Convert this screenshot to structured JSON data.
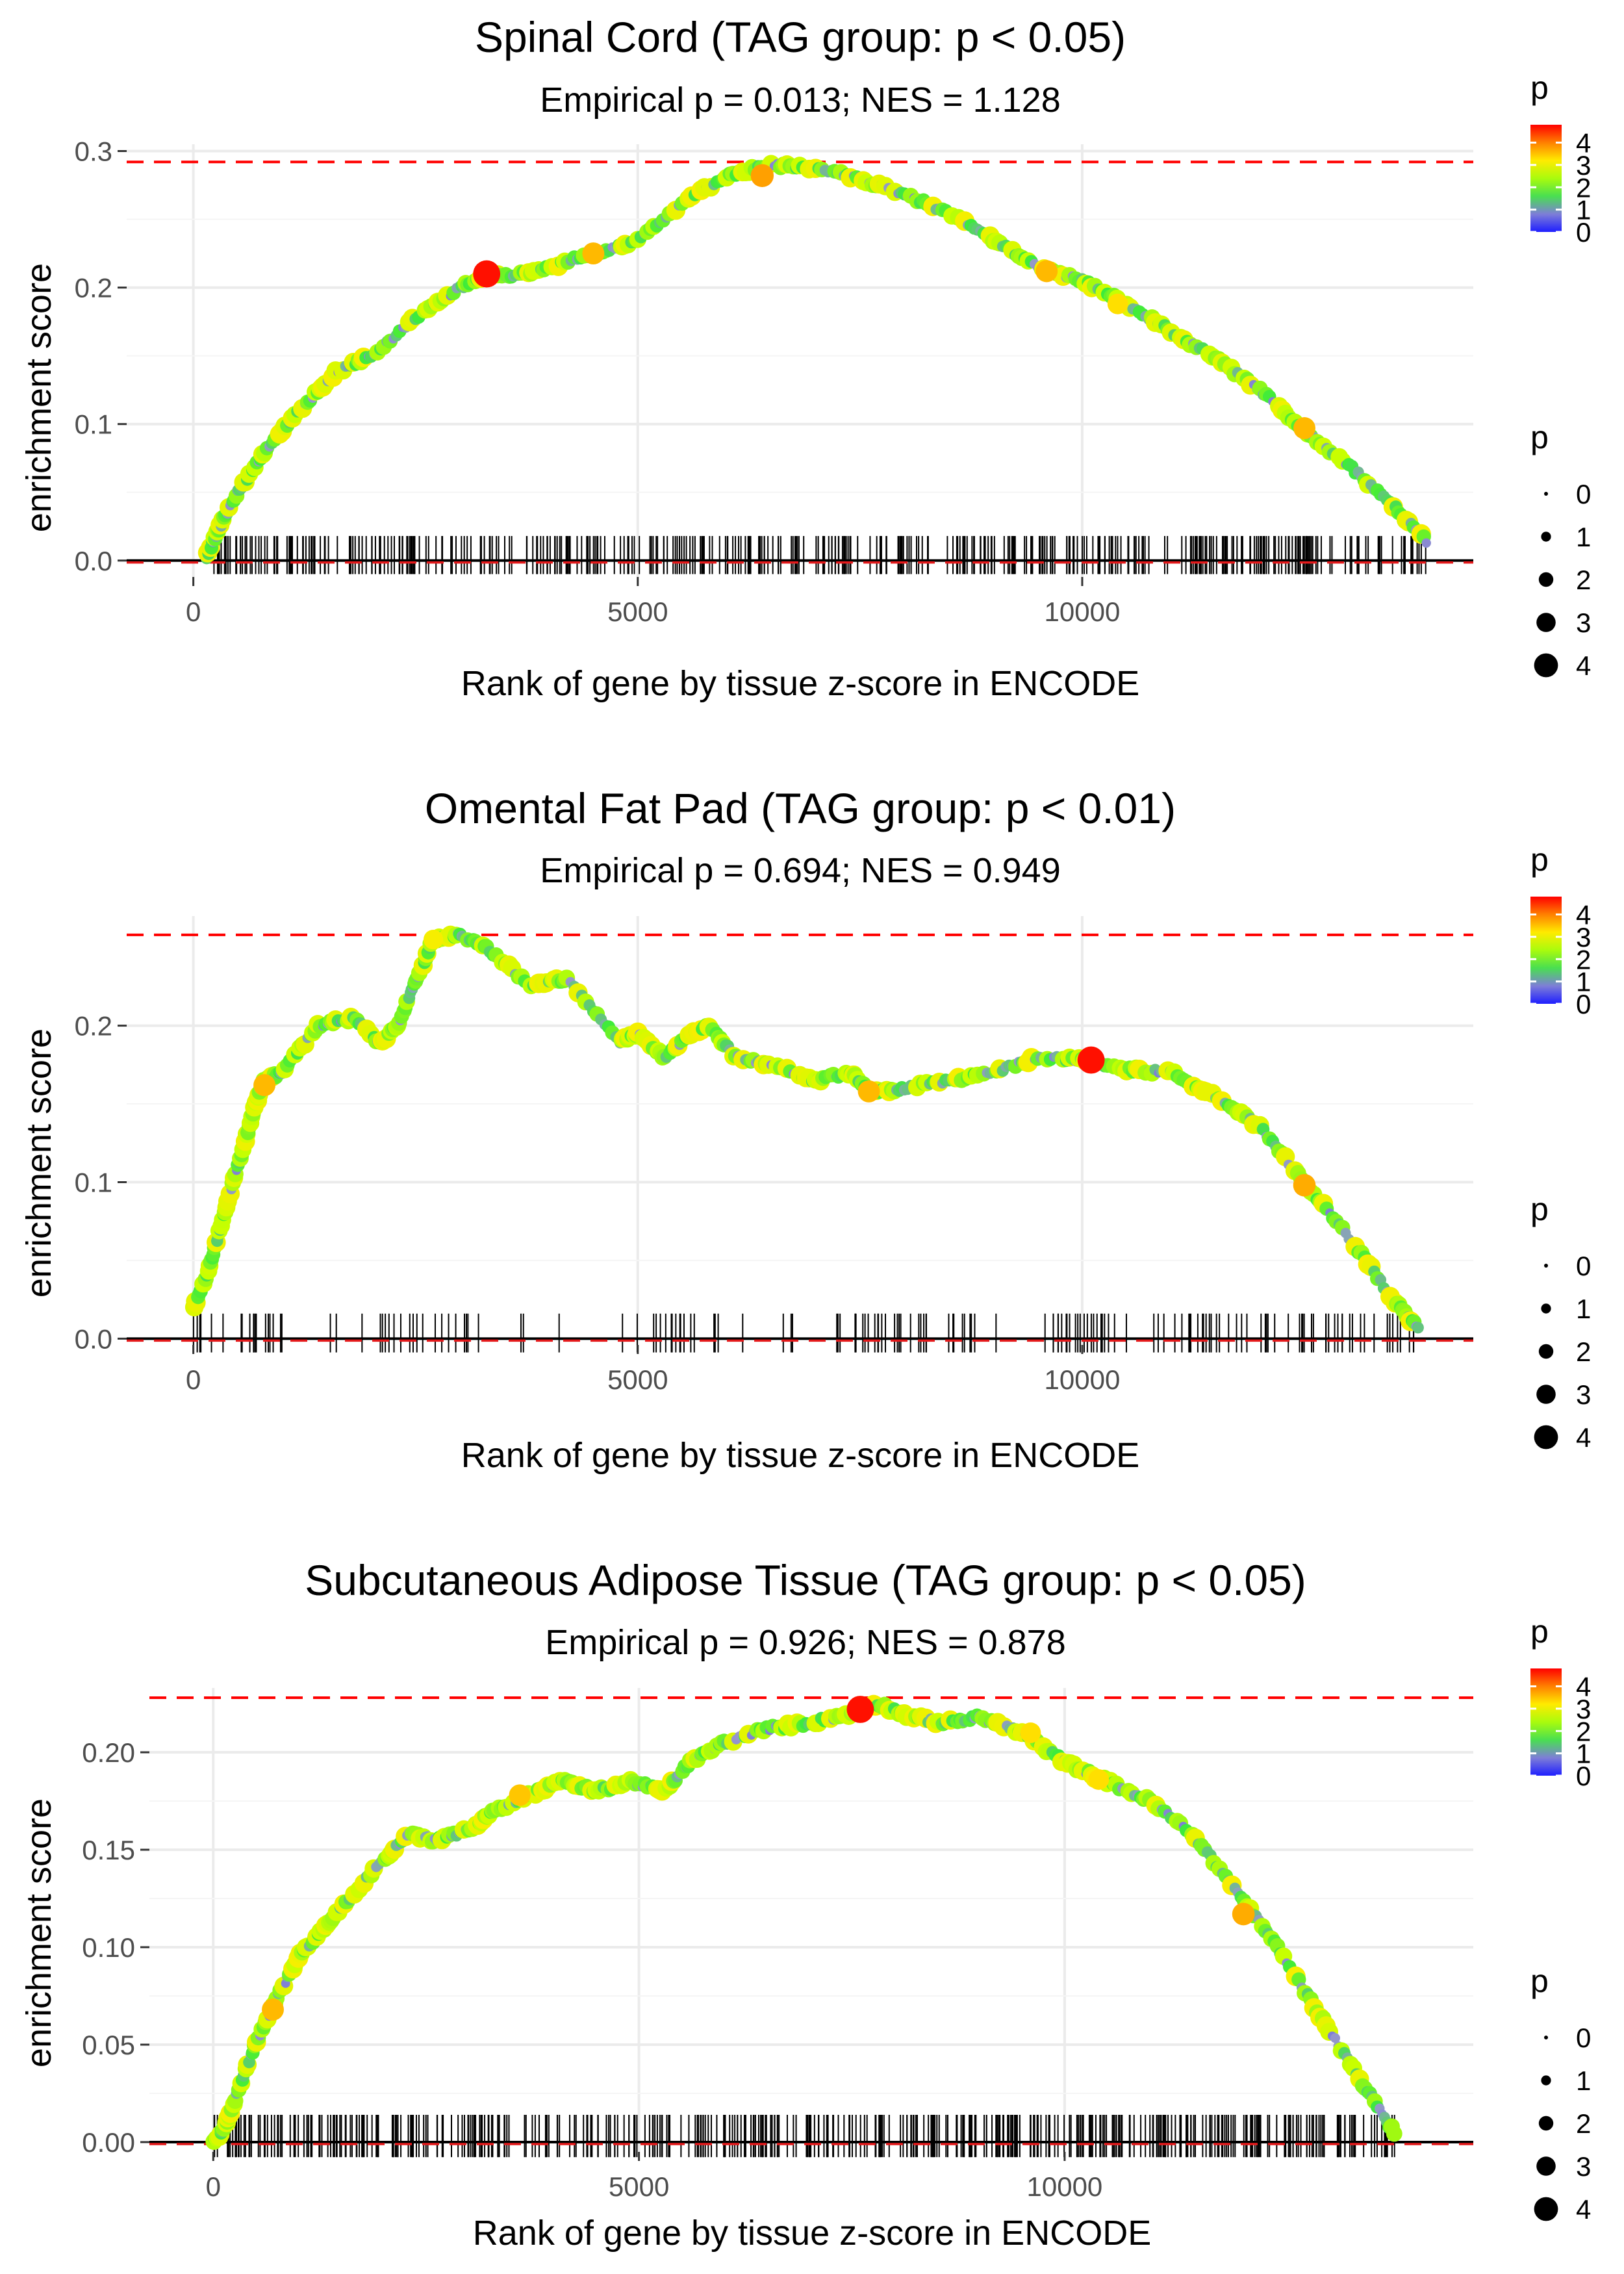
{
  "chart_data": [
    {
      "type": "line",
      "title": "Spinal Cord (TAG group: p < 0.05)",
      "subtitle": "Empirical p = 0.013; NES = 1.128",
      "xlabel": "Rank of gene by tissue z-score in ENCODE",
      "ylabel": "enrichment score",
      "xlim": [
        -750,
        14400
      ],
      "ylim": [
        -0.012,
        0.305
      ],
      "xticks": [
        0,
        5000,
        10000
      ],
      "xtick_labels": [
        "0",
        "5000",
        "10000"
      ],
      "yticks": [
        0.0,
        0.1,
        0.2,
        0.3
      ],
      "ytick_labels": [
        "0.0",
        "0.1",
        "0.2",
        "0.3"
      ],
      "max_es_line": 0.292,
      "zero_line": 0.0,
      "rug_height": 0.018,
      "series": [
        {
          "name": "running enrichment score",
          "x": [
            150,
            300,
            500,
            800,
            1200,
            1600,
            2000,
            2500,
            3000,
            3300,
            3600,
            4000,
            4500,
            5000,
            5500,
            6000,
            6500,
            7000,
            7500,
            8000,
            8500,
            9000,
            9500,
            10000,
            10500,
            11000,
            11500,
            12000,
            12500,
            13000,
            13500,
            13900
          ],
          "y": [
            0.003,
            0.025,
            0.05,
            0.08,
            0.11,
            0.138,
            0.15,
            0.178,
            0.2,
            0.21,
            0.208,
            0.215,
            0.225,
            0.235,
            0.262,
            0.282,
            0.29,
            0.287,
            0.28,
            0.268,
            0.255,
            0.235,
            0.215,
            0.205,
            0.188,
            0.168,
            0.148,
            0.125,
            0.095,
            0.07,
            0.04,
            0.012
          ]
        }
      ],
      "highlight_points": [
        {
          "x": 3300,
          "y": 0.21,
          "p": 4.7
        },
        {
          "x": 4500,
          "y": 0.225,
          "p": 3.6
        },
        {
          "x": 6400,
          "y": 0.282,
          "p": 3.8
        },
        {
          "x": 9600,
          "y": 0.212,
          "p": 3.6
        },
        {
          "x": 10400,
          "y": 0.188,
          "p": 3.3
        },
        {
          "x": 12500,
          "y": 0.097,
          "p": 3.6
        }
      ],
      "legend_color": {
        "title": "p",
        "range": [
          0,
          4.8
        ],
        "labels": [
          "4",
          "3",
          "2",
          "1",
          "0"
        ],
        "values": [
          4,
          3,
          2,
          1,
          0
        ]
      },
      "legend_size": {
        "title": "p",
        "labels": [
          "0",
          "1",
          "2",
          "3",
          "4"
        ],
        "values": [
          0,
          1,
          2,
          3,
          4
        ]
      }
    },
    {
      "type": "line",
      "title": "Omental Fat Pad (TAG group: p < 0.01)",
      "subtitle": "Empirical p = 0.694; NES = 0.949",
      "xlabel": "Rank of gene by tissue z-score in ENCODE",
      "ylabel": "enrichment score",
      "xlim": [
        -750,
        14400
      ],
      "ylim": [
        -0.004,
        0.27
      ],
      "xticks": [
        0,
        5000,
        10000
      ],
      "xtick_labels": [
        "0",
        "5000",
        "10000"
      ],
      "yticks": [
        0.0,
        0.1,
        0.2
      ],
      "ytick_labels": [
        "0.0",
        "0.1",
        "0.2"
      ],
      "max_es_line": 0.258,
      "zero_line": 0.0,
      "rug_height": 0.016,
      "series": [
        {
          "name": "running enrichment score",
          "x": [
            0,
            150,
            300,
            500,
            700,
            800,
            1000,
            1400,
            1800,
            2100,
            2300,
            2500,
            2700,
            3000,
            3300,
            3800,
            4200,
            4800,
            5000,
            5300,
            5600,
            5800,
            6100,
            6500,
            7000,
            7400,
            7600,
            8000,
            8500,
            9000,
            9500,
            10000,
            10500,
            11000,
            11500,
            12000,
            12500,
            13000,
            13500,
            13800
          ],
          "y": [
            0.02,
            0.04,
            0.07,
            0.11,
            0.15,
            0.165,
            0.17,
            0.2,
            0.205,
            0.188,
            0.2,
            0.228,
            0.255,
            0.258,
            0.25,
            0.225,
            0.23,
            0.19,
            0.195,
            0.18,
            0.195,
            0.2,
            0.18,
            0.175,
            0.165,
            0.17,
            0.158,
            0.16,
            0.165,
            0.17,
            0.18,
            0.178,
            0.172,
            0.17,
            0.155,
            0.135,
            0.1,
            0.065,
            0.025,
            0.005
          ]
        }
      ],
      "highlight_points": [
        {
          "x": 800,
          "y": 0.162,
          "p": 3.6
        },
        {
          "x": 2700,
          "y": 0.255,
          "p": 3.1
        },
        {
          "x": 7600,
          "y": 0.158,
          "p": 3.6
        },
        {
          "x": 10100,
          "y": 0.178,
          "p": 4.7
        },
        {
          "x": 12500,
          "y": 0.098,
          "p": 3.7
        }
      ],
      "legend_color": {
        "title": "p",
        "range": [
          0,
          4.8
        ],
        "labels": [
          "4",
          "3",
          "2",
          "1",
          "0"
        ],
        "values": [
          4,
          3,
          2,
          1,
          0
        ]
      },
      "legend_size": {
        "title": "p",
        "labels": [
          "0",
          "1",
          "2",
          "3",
          "4"
        ],
        "values": [
          0,
          1,
          2,
          3,
          4
        ]
      }
    },
    {
      "type": "line",
      "title": "Subcutaneous Adipose Tissue (TAG group: p < 0.05)",
      "subtitle": "Empirical p = 0.926; NES = 0.878",
      "xlabel": "Rank of gene by tissue z-score in ENCODE",
      "ylabel": "enrichment score",
      "xlim": [
        -750,
        14800
      ],
      "ylim": [
        -0.005,
        0.233
      ],
      "xticks": [
        0,
        5000,
        10000
      ],
      "xtick_labels": [
        "0",
        "5000",
        "10000"
      ],
      "yticks": [
        0.0,
        0.05,
        0.1,
        0.15,
        0.2
      ],
      "ytick_labels": [
        "0.00",
        "0.05",
        "0.10",
        "0.15",
        "0.20"
      ],
      "max_es_line": 0.228,
      "zero_line": 0.0,
      "rug_height": 0.014,
      "series": [
        {
          "name": "running enrichment score",
          "x": [
            0,
            100,
            200,
            400,
            700,
            1000,
            1300,
            1600,
            2000,
            2300,
            2600,
            3000,
            3300,
            3700,
            4100,
            4500,
            4900,
            5300,
            5600,
            6000,
            6500,
            7000,
            7500,
            7800,
            8200,
            8600,
            9000,
            9500,
            10000,
            10500,
            11000,
            11500,
            12000,
            12500,
            13000,
            13500,
            13900
          ],
          "y": [
            0.0,
            0.005,
            0.015,
            0.04,
            0.07,
            0.095,
            0.11,
            0.125,
            0.145,
            0.158,
            0.155,
            0.16,
            0.17,
            0.178,
            0.185,
            0.18,
            0.185,
            0.18,
            0.195,
            0.205,
            0.212,
            0.215,
            0.22,
            0.225,
            0.218,
            0.215,
            0.218,
            0.21,
            0.195,
            0.185,
            0.175,
            0.158,
            0.13,
            0.1,
            0.065,
            0.03,
            0.003
          ]
        }
      ],
      "highlight_points": [
        {
          "x": 700,
          "y": 0.068,
          "p": 3.6
        },
        {
          "x": 3600,
          "y": 0.178,
          "p": 3.5
        },
        {
          "x": 7600,
          "y": 0.222,
          "p": 4.7
        },
        {
          "x": 9600,
          "y": 0.21,
          "p": 3.3
        },
        {
          "x": 10400,
          "y": 0.186,
          "p": 3.3
        },
        {
          "x": 12100,
          "y": 0.117,
          "p": 3.7
        }
      ],
      "legend_color": {
        "title": "p",
        "range": [
          0,
          4.8
        ],
        "labels": [
          "4",
          "3",
          "2",
          "1",
          "0"
        ],
        "values": [
          4,
          3,
          2,
          1,
          0
        ]
      },
      "legend_size": {
        "title": "p",
        "labels": [
          "0",
          "1",
          "2",
          "3",
          "4"
        ],
        "values": [
          0,
          1,
          2,
          3,
          4
        ]
      }
    }
  ]
}
